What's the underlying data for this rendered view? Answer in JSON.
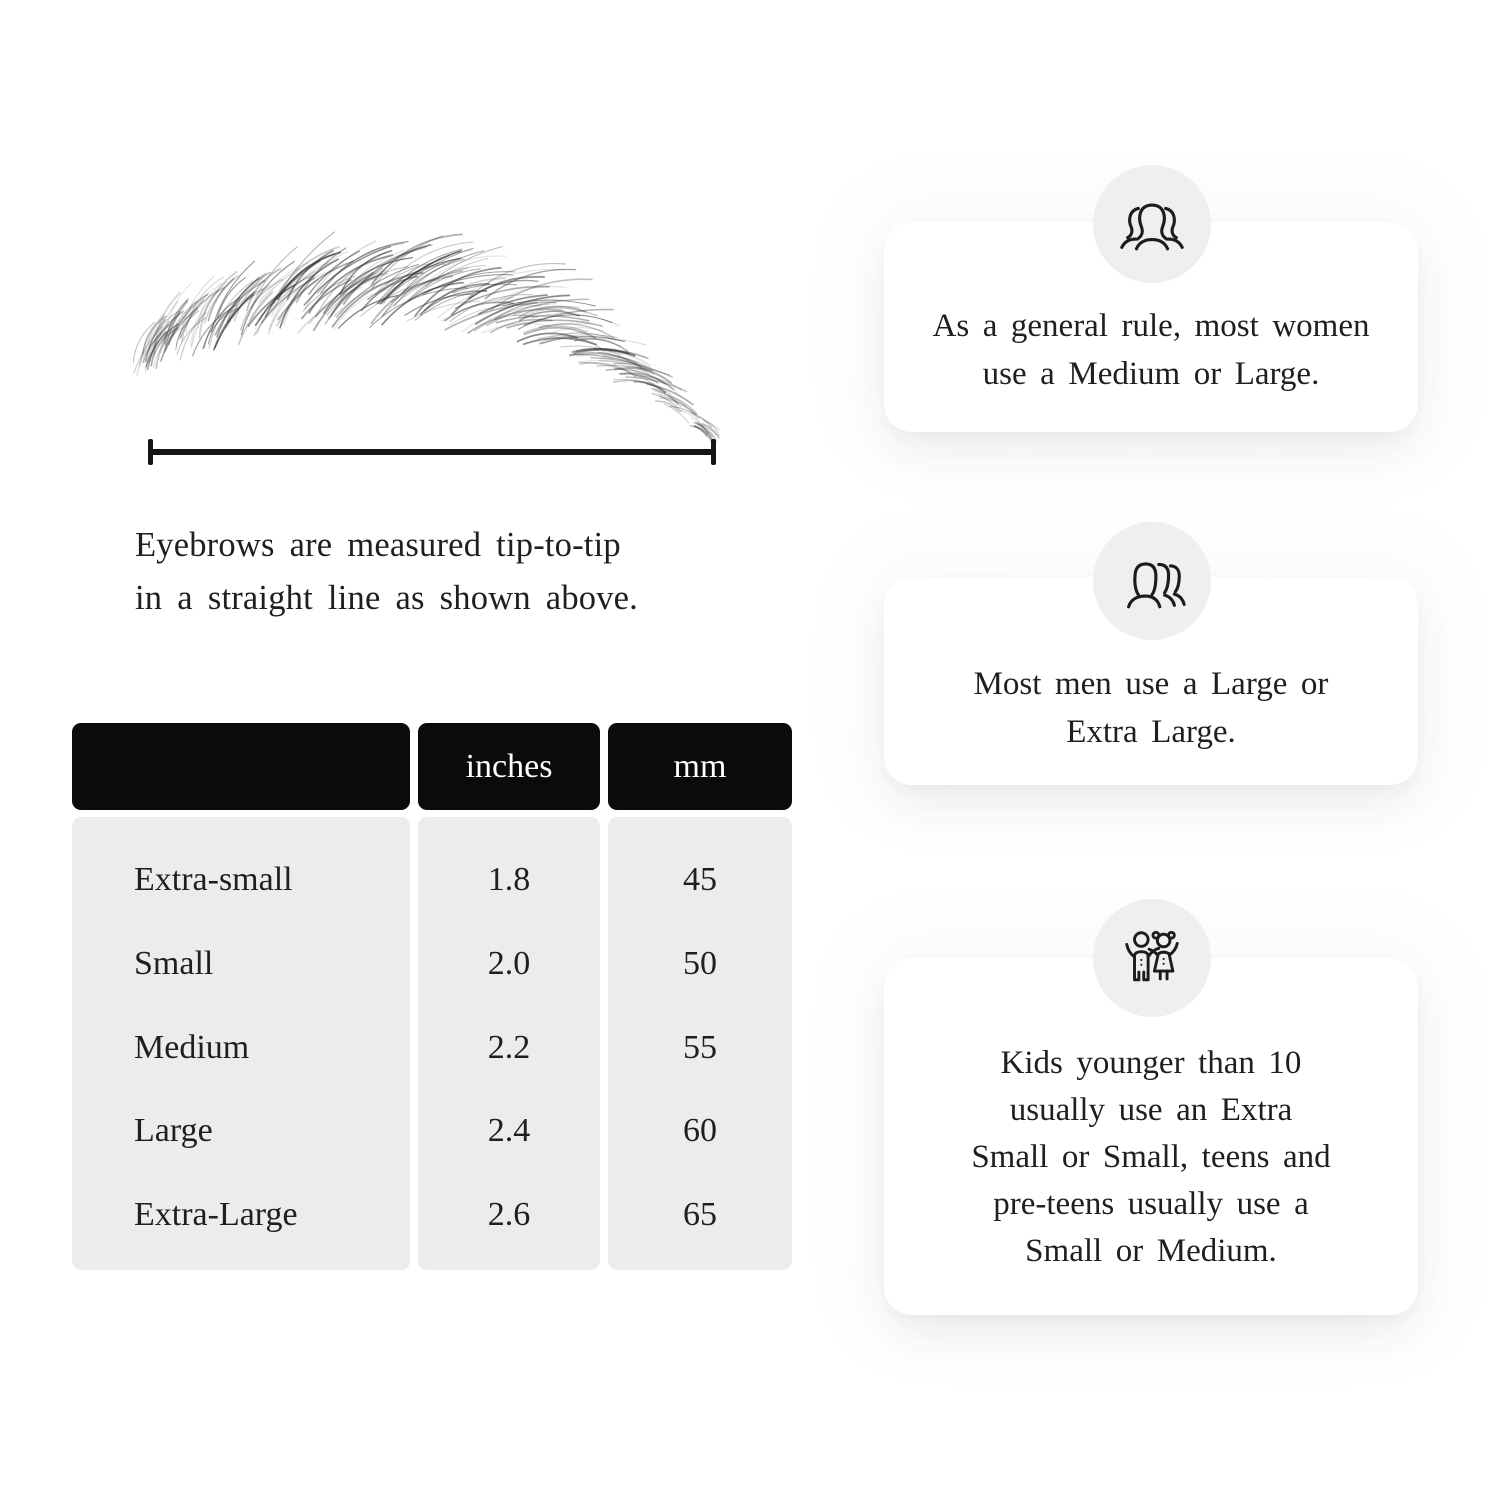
{
  "figure": {
    "name": "eyebrow-illustration",
    "hair_color": "#2e2e2e"
  },
  "measurement_line": {
    "color": "#151515"
  },
  "caption": {
    "lines": [
      "Eyebrows are measured tip-to-tip",
      "in a straight line as shown above."
    ]
  },
  "size_table": {
    "columns": [
      "",
      "inches",
      "mm"
    ],
    "rows": [
      {
        "label": "Extra-small",
        "inches": "1.8",
        "mm": "45"
      },
      {
        "label": "Small",
        "inches": "2.0",
        "mm": "50"
      },
      {
        "label": "Medium",
        "inches": "2.2",
        "mm": "55"
      },
      {
        "label": "Large",
        "inches": "2.4",
        "mm": "60"
      },
      {
        "label": "Extra-Large",
        "inches": "2.6",
        "mm": "65"
      }
    ]
  },
  "cards": [
    {
      "icon": "women-group-icon",
      "lines": [
        "As a general rule, most women",
        "use a Medium or Large."
      ]
    },
    {
      "icon": "men-group-icon",
      "lines": [
        "Most men use a Large or",
        "Extra Large."
      ]
    },
    {
      "icon": "kids-icon",
      "lines": [
        "Kids younger than 10",
        "usually use an Extra",
        "Small or Small, teens and",
        "pre-teens usually use a",
        "Small or Medium."
      ]
    }
  ],
  "colors": {
    "header_bg": "#0b0b0b",
    "header_text": "#ffffff",
    "body_bg": "#ececec",
    "text": "#1f1f1f",
    "icon_circle": "#efefef",
    "card_bg": "#ffffff"
  }
}
